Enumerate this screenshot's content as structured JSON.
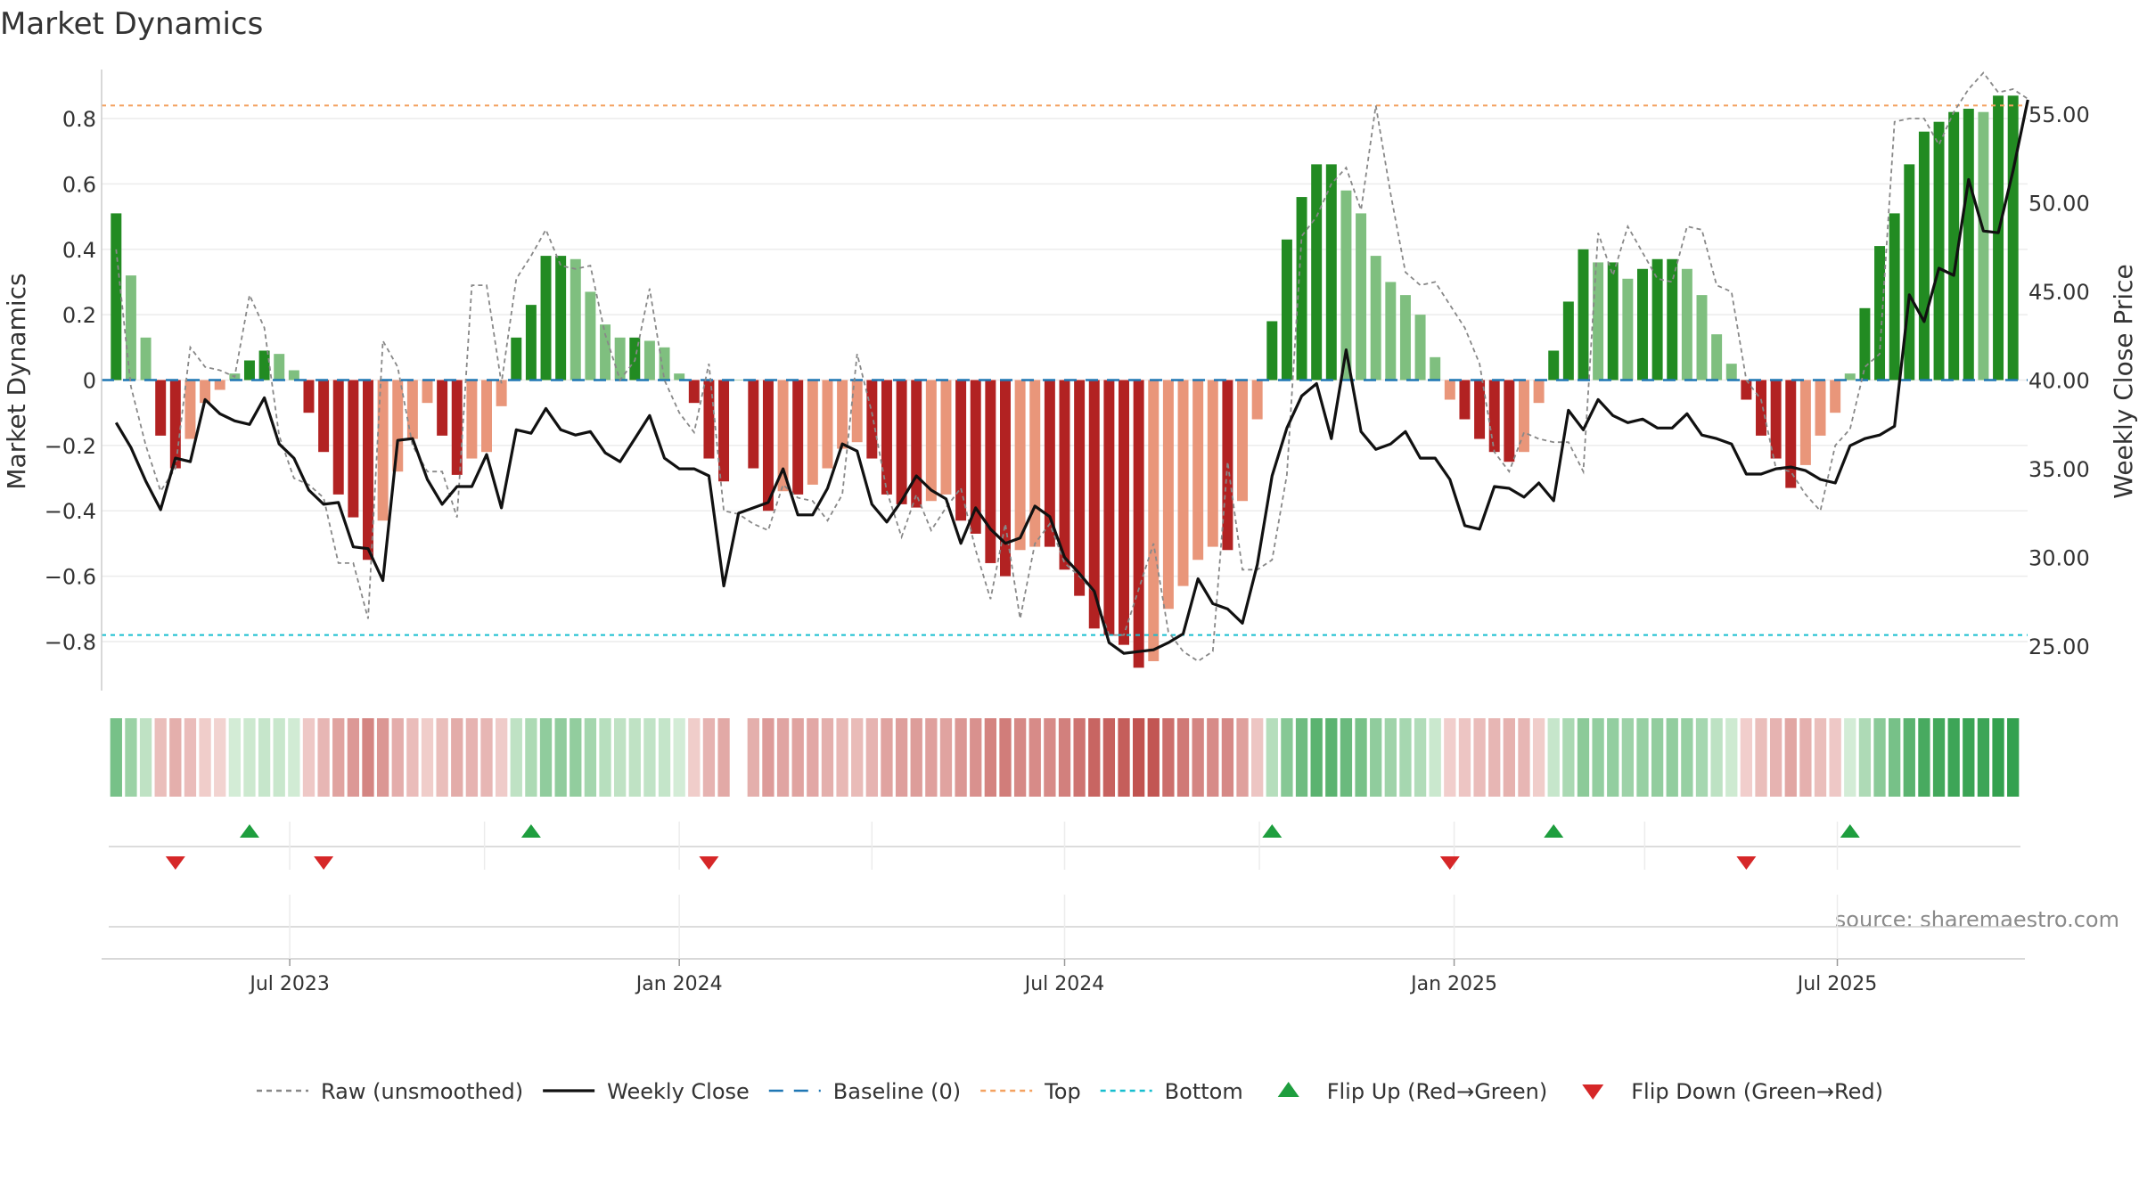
{
  "title": "Market Dynamics",
  "source": "source: sharemaestro.com",
  "colors": {
    "strong_green": "#228b22",
    "light_green": "#7fbf7f",
    "strong_red": "#b22222",
    "light_red": "#e9967a",
    "close": "#111111",
    "raw": "#888888",
    "baseline": "#1f77b4",
    "top": "#f4a261",
    "bottom": "#17becf",
    "flip_up": "#1e9e3e",
    "flip_down": "#d62728"
  },
  "chart_data": {
    "type": "bar",
    "title": "Market Dynamics",
    "ylabel_left": "Market Dynamics",
    "ylabel_right": "Weekly Close Price",
    "ylim_left": [
      -0.95,
      0.95
    ],
    "ylim_right": [
      22.5,
      57.5
    ],
    "left_ticks": [
      0.8,
      0.6,
      0.4,
      0.2,
      0,
      -0.2,
      -0.4,
      -0.6,
      -0.8
    ],
    "left_tick_labels": [
      "0.8",
      "0.6",
      "0.4",
      "0.2",
      "0",
      "−0.2",
      "−0.4",
      "−0.6",
      "−0.8"
    ],
    "right_ticks": [
      55,
      50,
      45,
      40,
      35,
      30,
      25
    ],
    "right_tick_labels": [
      "55.00",
      "50.00",
      "45.00",
      "40.00",
      "35.00",
      "30.00",
      "25.00"
    ],
    "top_level": 0.84,
    "bottom_level": -0.78,
    "baseline": 0,
    "x_start": "2023-04-10",
    "x_step_days": 7,
    "x_ticks": [
      {
        "date": "2023-07-01",
        "label": "Jul 2023"
      },
      {
        "date": "2024-01-01",
        "label": "Jan 2024"
      },
      {
        "date": "2024-07-01",
        "label": "Jul 2024"
      },
      {
        "date": "2025-01-01",
        "label": "Jan 2025"
      },
      {
        "date": "2025-07-01",
        "label": "Jul 2025"
      }
    ],
    "grid": true,
    "legend": "bottom",
    "series": [
      {
        "name": "Market Dynamics",
        "type": "bar",
        "values": [
          0.51,
          0.32,
          0.13,
          -0.17,
          -0.27,
          -0.18,
          -0.07,
          -0.03,
          0.02,
          0.06,
          0.09,
          0.08,
          0.03,
          -0.1,
          -0.22,
          -0.35,
          -0.42,
          -0.55,
          -0.43,
          -0.28,
          -0.18,
          -0.07,
          -0.17,
          -0.29,
          -0.24,
          -0.22,
          -0.08,
          0.13,
          0.23,
          0.38,
          0.38,
          0.37,
          0.27,
          0.17,
          0.13,
          0.13,
          0.12,
          0.1,
          0.02,
          -0.07,
          -0.24,
          -0.31,
          0,
          -0.27,
          -0.4,
          -0.34,
          -0.35,
          -0.32,
          -0.27,
          -0.21,
          -0.19,
          -0.24,
          -0.35,
          -0.38,
          -0.39,
          -0.37,
          -0.35,
          -0.43,
          -0.47,
          -0.56,
          -0.6,
          -0.52,
          -0.51,
          -0.51,
          -0.58,
          -0.66,
          -0.76,
          -0.78,
          -0.81,
          -0.88,
          -0.86,
          -0.7,
          -0.63,
          -0.55,
          -0.51,
          -0.52,
          -0.37,
          -0.12,
          0.18,
          0.43,
          0.56,
          0.66,
          0.66,
          0.58,
          0.51,
          0.38,
          0.3,
          0.26,
          0.2,
          0.07,
          -0.06,
          -0.12,
          -0.18,
          -0.22,
          -0.25,
          -0.22,
          -0.07,
          0.09,
          0.24,
          0.4,
          0.36,
          0.36,
          0.31,
          0.34,
          0.37,
          0.37,
          0.34,
          0.26,
          0.14,
          0.05,
          -0.06,
          -0.17,
          -0.24,
          -0.33,
          -0.26,
          -0.17,
          -0.1,
          0.02,
          0.22,
          0.41,
          0.51,
          0.66,
          0.76,
          0.79,
          0.82,
          0.83,
          0.82,
          0.87,
          0.87
        ]
      },
      {
        "name": "Raw (unsmoothed)",
        "type": "line",
        "values": [
          0.4,
          -0.02,
          -0.2,
          -0.34,
          -0.27,
          0.1,
          0.04,
          0.03,
          0.01,
          0.26,
          0.16,
          -0.17,
          -0.3,
          -0.32,
          -0.36,
          -0.56,
          -0.56,
          -0.73,
          0.12,
          0.04,
          -0.2,
          -0.28,
          -0.28,
          -0.42,
          0.29,
          0.29,
          -0.01,
          0.31,
          0.38,
          0.46,
          0.35,
          0.34,
          0.35,
          0.14,
          0.0,
          0.06,
          0.28,
          0.0,
          -0.1,
          -0.16,
          0.05,
          -0.4,
          -0.41,
          -0.44,
          -0.46,
          -0.32,
          -0.36,
          -0.37,
          -0.43,
          -0.35,
          0.08,
          -0.1,
          -0.34,
          -0.48,
          -0.35,
          -0.46,
          -0.39,
          -0.33,
          -0.52,
          -0.67,
          -0.44,
          -0.73,
          -0.5,
          -0.44,
          -0.56,
          -0.6,
          -0.65,
          -0.78,
          -0.78,
          -0.64,
          -0.5,
          -0.77,
          -0.83,
          -0.86,
          -0.83,
          -0.25,
          -0.58,
          -0.58,
          -0.55,
          -0.29,
          0.44,
          0.5,
          0.6,
          0.65,
          0.52,
          0.84,
          0.57,
          0.33,
          0.29,
          0.3,
          0.23,
          0.16,
          0.05,
          -0.22,
          -0.28,
          -0.16,
          -0.18,
          -0.19,
          -0.19,
          -0.28,
          0.45,
          0.32,
          0.47,
          0.39,
          0.31,
          0.3,
          0.47,
          0.46,
          0.29,
          0.27,
          0.0,
          -0.06,
          -0.27,
          -0.28,
          -0.35,
          -0.4,
          -0.2,
          -0.15,
          0.04,
          0.08,
          0.79,
          0.8,
          0.8,
          0.72,
          0.82,
          0.89,
          0.94,
          0.88,
          0.89,
          0.86
        ]
      },
      {
        "name": "Weekly Close",
        "type": "line",
        "axis": "right",
        "values": [
          37.6,
          36.2,
          34.3,
          32.7,
          35.6,
          35.4,
          38.9,
          38.1,
          37.7,
          37.5,
          39.0,
          36.4,
          35.6,
          33.8,
          33.0,
          33.1,
          30.6,
          30.5,
          28.7,
          36.6,
          36.7,
          34.4,
          33.0,
          34.0,
          34.0,
          35.8,
          32.8,
          37.2,
          37.0,
          38.4,
          37.2,
          36.9,
          37.1,
          35.9,
          35.4,
          36.7,
          38.0,
          35.6,
          35.0,
          35.0,
          34.6,
          28.4,
          32.5,
          32.8,
          33.1,
          35.0,
          32.4,
          32.4,
          33.9,
          36.4,
          36.0,
          33.0,
          32.0,
          33.2,
          34.6,
          33.8,
          33.3,
          30.8,
          32.8,
          31.6,
          30.8,
          31.1,
          32.9,
          32.3,
          30.0,
          29.1,
          28.1,
          25.2,
          24.6,
          24.7,
          24.8,
          25.2,
          25.7,
          28.8,
          27.4,
          27.1,
          26.3,
          29.6,
          34.6,
          37.3,
          39.1,
          39.8,
          36.7,
          41.7,
          37.1,
          36.1,
          36.4,
          37.1,
          35.6,
          35.6,
          34.4,
          31.8,
          31.6,
          34.0,
          33.9,
          33.4,
          34.2,
          33.2,
          38.3,
          37.2,
          38.9,
          38.0,
          37.6,
          37.8,
          37.3,
          37.3,
          38.1,
          36.9,
          36.7,
          36.4,
          34.7,
          34.7,
          35.0,
          35.1,
          34.9,
          34.4,
          34.2,
          36.3,
          36.7,
          36.9,
          37.4,
          44.8,
          43.3,
          46.3,
          45.9,
          51.3,
          48.4,
          48.3,
          51.8,
          55.8
        ]
      }
    ],
    "flips_up": [
      9,
      28,
      78,
      97,
      117
    ],
    "flips_down": [
      4,
      14,
      40,
      90,
      110
    ],
    "legend_items": [
      {
        "label": "Raw (unsmoothed)",
        "kind": "dashed-line",
        "color": "#888888"
      },
      {
        "label": "Weekly Close",
        "kind": "line",
        "color": "#111111"
      },
      {
        "label": "Baseline (0)",
        "kind": "longdash-line",
        "color": "#1f77b4"
      },
      {
        "label": "Top",
        "kind": "dashed-line",
        "color": "#f4a261"
      },
      {
        "label": "Bottom",
        "kind": "dashed-line",
        "color": "#17becf"
      },
      {
        "label": "Flip Up (Red→Green)",
        "kind": "triangle-up",
        "color": "#1e9e3e"
      },
      {
        "label": "Flip Down (Green→Red)",
        "kind": "triangle-down",
        "color": "#d62728"
      }
    ]
  }
}
